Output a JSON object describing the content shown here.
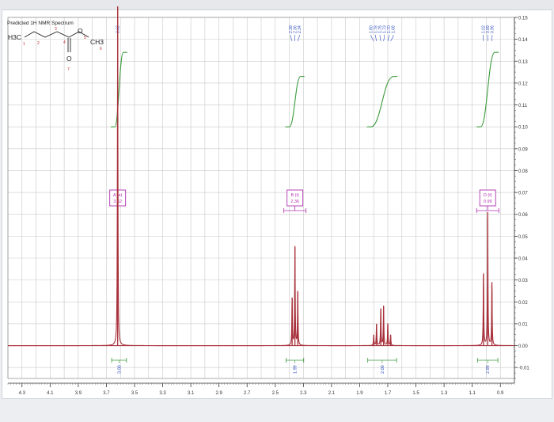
{
  "title": "Predicted 1H NMR Spectrum",
  "molecule": {
    "h3c": "H3C",
    "ch3": "CH3",
    "o_ester": "O",
    "o_carbonyl": "O",
    "atom_numbers": [
      "1",
      "2",
      "3",
      "4",
      "5",
      "6",
      "7"
    ]
  },
  "colors": {
    "spectrum": "#a8303a",
    "integral": "#3a9a3a",
    "peak_label": "#b030b0",
    "ppm_label": "#3050c0",
    "grid": "#c9c9c9",
    "baseline": "#a8303a"
  },
  "chart_data": {
    "type": "line",
    "title": "Predicted 1H NMR Spectrum",
    "xlabel": "",
    "ylabel": "",
    "xlim": [
      4.4,
      0.8
    ],
    "ylim": [
      -0.015,
      0.15
    ],
    "x_ticks": [
      "4.3",
      "4.1",
      "3.9",
      "3.7",
      "3.5",
      "3.3",
      "3.1",
      "2.9",
      "2.7",
      "2.5",
      "2.3",
      "2.1",
      "1.9",
      "1.7",
      "1.5",
      "1.3",
      "1.1",
      "0.9"
    ],
    "x_tick_values": [
      4.3,
      4.1,
      3.9,
      3.7,
      3.5,
      3.3,
      3.1,
      2.9,
      2.7,
      2.5,
      2.3,
      2.1,
      1.9,
      1.7,
      1.5,
      1.3,
      1.1,
      0.9
    ],
    "y_ticks": [
      "0.15",
      "0.14",
      "0.13",
      "0.12",
      "0.11",
      "0.10",
      "0.09",
      "0.08",
      "0.07",
      "0.06",
      "0.05",
      "0.04",
      "0.03",
      "0.02",
      "0.01",
      "0.00",
      "-0.01"
    ],
    "y_tick_values": [
      0.15,
      0.14,
      0.13,
      0.12,
      0.11,
      0.1,
      0.09,
      0.08,
      0.07,
      0.06,
      0.05,
      0.04,
      0.03,
      0.02,
      0.01,
      0.0,
      -0.01
    ],
    "grid": true,
    "peaks": [
      {
        "ppm": 3.62,
        "height": 0.155
      },
      {
        "ppm": 2.38,
        "height": 0.022
      },
      {
        "ppm": 2.36,
        "height": 0.045
      },
      {
        "ppm": 2.34,
        "height": 0.025
      },
      {
        "ppm": 1.8,
        "height": 0.005
      },
      {
        "ppm": 1.78,
        "height": 0.01
      },
      {
        "ppm": 1.75,
        "height": 0.017
      },
      {
        "ppm": 1.73,
        "height": 0.018
      },
      {
        "ppm": 1.7,
        "height": 0.01
      },
      {
        "ppm": 1.68,
        "height": 0.005
      },
      {
        "ppm": 1.02,
        "height": 0.033
      },
      {
        "ppm": 0.99,
        "height": 0.061
      },
      {
        "ppm": 0.96,
        "height": 0.029
      }
    ],
    "peak_ppm_labels": [
      {
        "ppm": 3.62,
        "text": "3.62"
      },
      {
        "ppm": 2.38,
        "text": "2.38"
      },
      {
        "ppm": 2.36,
        "text": "2.36"
      },
      {
        "ppm": 2.34,
        "text": "2.34"
      },
      {
        "ppm": 1.8,
        "text": "1.80"
      },
      {
        "ppm": 1.78,
        "text": "1.78"
      },
      {
        "ppm": 1.75,
        "text": "1.75"
      },
      {
        "ppm": 1.73,
        "text": "1.73"
      },
      {
        "ppm": 1.7,
        "text": "1.70"
      },
      {
        "ppm": 1.68,
        "text": "1.68"
      },
      {
        "ppm": 1.02,
        "text": "1.02"
      },
      {
        "ppm": 0.99,
        "text": "0.99"
      },
      {
        "ppm": 0.96,
        "text": "0.96"
      }
    ],
    "multiplets": [
      {
        "label": "A (s)",
        "shift": "3.62",
        "ppm": 3.62
      },
      {
        "label": "B (t)",
        "shift": "2.36",
        "ppm": 2.36
      },
      {
        "label": "D (t)",
        "shift": "0.99",
        "ppm": 0.99
      }
    ],
    "integrals": [
      {
        "ppm_start": 3.64,
        "ppm_end": 3.58,
        "value": "3.00",
        "y_low": 0.1,
        "y_high": 0.134
      },
      {
        "ppm_start": 2.4,
        "ppm_end": 2.32,
        "value": "1.99",
        "y_low": 0.1,
        "y_high": 0.123
      },
      {
        "ppm_start": 1.82,
        "ppm_end": 1.66,
        "value": "2.00",
        "y_low": 0.1,
        "y_high": 0.123
      },
      {
        "ppm_start": 1.04,
        "ppm_end": 0.94,
        "value": "2.99",
        "y_low": 0.1,
        "y_high": 0.134
      }
    ]
  }
}
